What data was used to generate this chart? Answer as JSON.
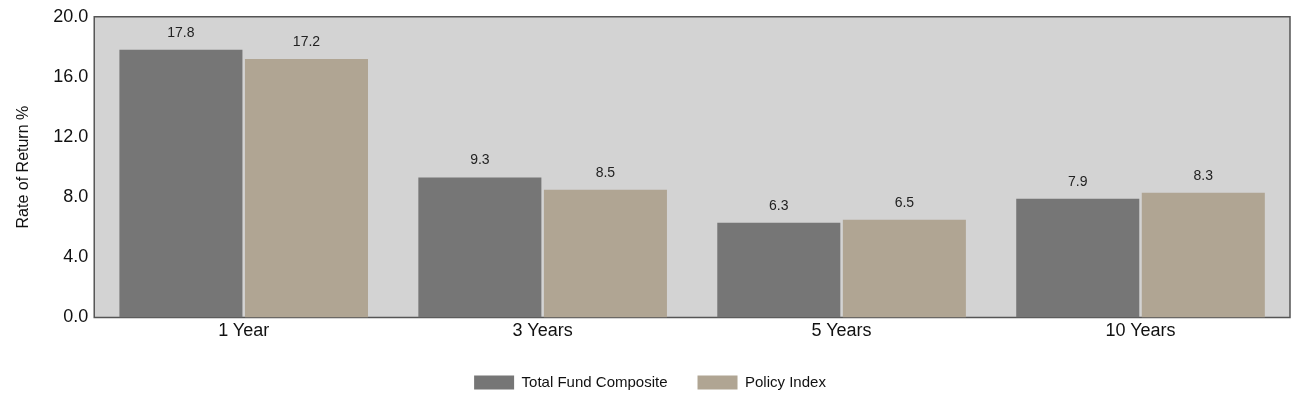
{
  "chart_data": {
    "type": "bar",
    "ylabel": "Rate of Return %",
    "categories": [
      "1 Year",
      "3 Years",
      "5 Years",
      "10 Years"
    ],
    "series": [
      {
        "name": "Total Fund Composite",
        "color": "#767676",
        "values": [
          17.8,
          9.3,
          6.3,
          7.9
        ]
      },
      {
        "name": "Policy Index",
        "color": "#b0a593",
        "values": [
          17.2,
          8.5,
          6.5,
          8.3
        ]
      }
    ],
    "ylim": [
      0,
      20
    ],
    "yticks": [
      {
        "value": 0,
        "label": "0.0"
      },
      {
        "value": 4,
        "label": "4.0"
      },
      {
        "value": 8,
        "label": "8.0"
      },
      {
        "value": 12,
        "label": "12.0"
      },
      {
        "value": 16,
        "label": "16.0"
      },
      {
        "value": 20,
        "label": "20.0"
      }
    ],
    "grid": false,
    "legend": "bottom",
    "data_labels": true
  }
}
